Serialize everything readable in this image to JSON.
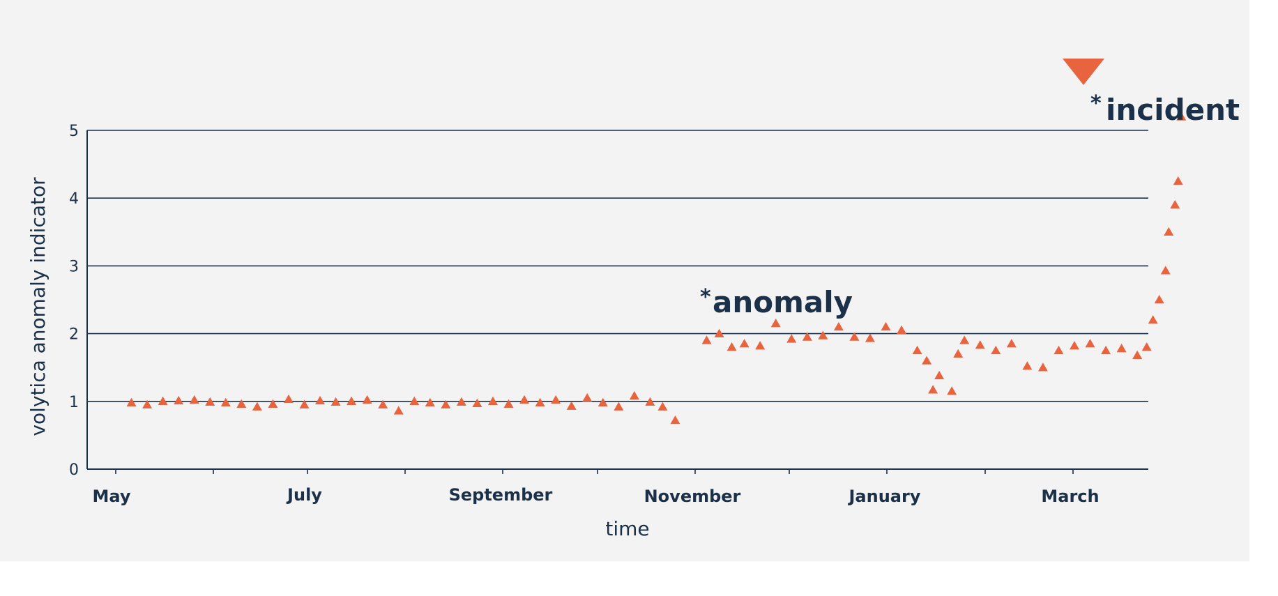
{
  "chart_data": {
    "type": "scatter",
    "xlabel": "time",
    "ylabel": "volytica anomaly indicator",
    "ylim": [
      0,
      5
    ],
    "y_ticks": [
      0,
      1,
      2,
      3,
      4,
      5
    ],
    "x_tick_labels": [
      "May",
      "July",
      "September",
      "November",
      "January",
      "March"
    ],
    "x_range_days": [
      0,
      335
    ],
    "grid": "horizontal",
    "marker": "triangle-up",
    "marker_color": "#e8643f",
    "axis_color": "#1b3049",
    "annotations": [
      {
        "text": "anomaly",
        "star": "*"
      },
      {
        "text": "incident",
        "star": "*",
        "marker": "triangle-down"
      }
    ],
    "series": [
      {
        "x": [
          5,
          10,
          15,
          20,
          25,
          30,
          35,
          40,
          45,
          50,
          55,
          60,
          65,
          70,
          75,
          80,
          85,
          90,
          95,
          100,
          105,
          110,
          115,
          120,
          125,
          130,
          135,
          140,
          145,
          150,
          155,
          160,
          165,
          170,
          174,
          178,
          188,
          192,
          196,
          200,
          205,
          210,
          215,
          220,
          225,
          230,
          235,
          240,
          245,
          250,
          255,
          258,
          260,
          262,
          266,
          268,
          270,
          275,
          280,
          285,
          290,
          295,
          300,
          305,
          310,
          315,
          320,
          325,
          328,
          330,
          332,
          334,
          335,
          337,
          338,
          339
        ],
        "y": [
          0.98,
          0.95,
          1.0,
          1.01,
          1.02,
          0.99,
          0.98,
          0.96,
          0.92,
          0.96,
          1.03,
          0.95,
          1.01,
          0.99,
          1.0,
          1.02,
          0.95,
          0.86,
          1.0,
          0.98,
          0.95,
          0.99,
          0.97,
          1.0,
          0.96,
          1.02,
          0.98,
          1.02,
          0.93,
          1.05,
          0.98,
          0.92,
          1.08,
          0.99,
          0.92,
          0.72,
          1.9,
          2.0,
          1.8,
          1.85,
          1.82,
          2.15,
          1.92,
          1.95,
          1.97,
          2.1,
          1.95,
          1.93,
          2.1,
          2.05,
          1.75,
          1.6,
          1.17,
          1.38,
          1.15,
          1.7,
          1.9,
          1.83,
          1.75,
          1.85,
          1.52,
          1.5,
          1.75,
          1.82,
          1.85,
          1.75,
          1.78,
          1.68,
          1.8,
          2.2,
          2.5,
          2.93,
          3.5,
          3.9,
          4.25,
          5.2
        ]
      }
    ]
  }
}
